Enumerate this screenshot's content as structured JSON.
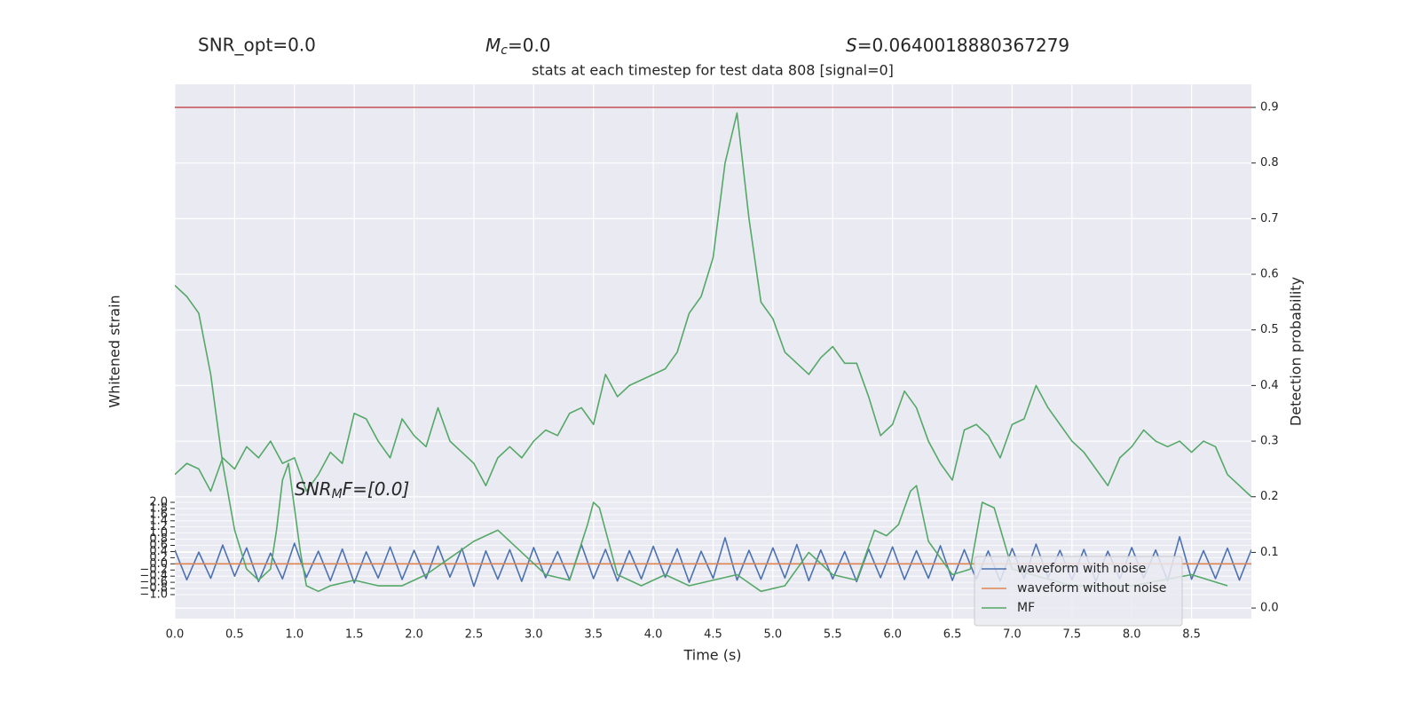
{
  "chart_data": {
    "type": "line",
    "stats": [
      {
        "text": "SNR_opt=0.0"
      },
      {
        "symbol": "M",
        "sub": "c",
        "text": "=0.0"
      },
      {
        "symbol": "S",
        "text": "=0.0640018880367279"
      }
    ],
    "title": "stats at each timestep for test data 808 [signal=0]",
    "annotation": {
      "symbol": "SNR",
      "sub": "M",
      "text": "F=[0.0]"
    },
    "xlabel": "Time (s)",
    "ylabel": "Whitened strain",
    "y2label": "Detection probability",
    "xlim": [
      0,
      9.0
    ],
    "ylim": [
      -1.78,
      15.59
    ],
    "y2lim": [
      -0.019,
      0.9415
    ],
    "xticks": [
      {
        "value": 0,
        "label": "0.0"
      },
      0.5,
      {
        "value": 1,
        "label": "1.0"
      },
      1.5,
      {
        "value": 2,
        "label": "2.0"
      },
      2.5,
      {
        "value": 3,
        "label": "3.0"
      },
      3.5,
      {
        "value": 4,
        "label": "4.0"
      },
      4.5,
      {
        "value": 5,
        "label": "5.0"
      },
      5.5,
      {
        "value": 6,
        "label": "6.0"
      },
      6.5,
      {
        "value": 7,
        "label": "7.0"
      },
      7.5,
      {
        "value": 8,
        "label": "8.0"
      },
      8.5
    ],
    "yticks": [
      {
        "value": -1,
        "label": "−1.0"
      },
      {
        "value": -0.8,
        "label": "−0.8"
      },
      {
        "value": -0.6,
        "label": "−0.6"
      },
      {
        "value": -0.4,
        "label": "−0.4"
      },
      {
        "value": -0.2,
        "label": "−0.2"
      },
      {
        "value": 0,
        "label": "0.0"
      },
      0.2,
      0.4,
      0.6,
      0.8,
      {
        "value": 1,
        "label": "1.0"
      },
      1.2,
      1.4,
      1.6,
      1.8,
      {
        "value": 2,
        "label": "2.0"
      }
    ],
    "y2ticks": [
      {
        "value": 0,
        "label": "0.0"
      },
      0.1,
      0.2,
      0.3,
      0.4,
      0.5,
      0.6,
      0.7,
      0.8,
      0.9
    ],
    "grid": true,
    "legend": "lower right",
    "threshold": 0.9,
    "threshold_color": "#c44e52",
    "x": [
      0,
      0.1,
      0.2,
      0.3,
      0.4,
      0.5,
      0.6,
      0.7,
      0.8,
      0.9,
      1,
      1.1,
      1.2,
      1.3,
      1.4,
      1.5,
      1.6,
      1.7,
      1.8,
      1.9,
      2,
      2.1,
      2.2,
      2.3,
      2.4,
      2.5,
      2.6,
      2.7,
      2.8,
      2.9,
      3,
      3.1,
      3.2,
      3.3,
      3.4,
      3.5,
      3.6,
      3.7,
      3.8,
      3.9,
      4,
      4.1,
      4.2,
      4.3,
      4.4,
      4.5,
      4.6,
      4.7,
      4.8,
      4.9,
      5,
      5.1,
      5.2,
      5.3,
      5.4,
      5.5,
      5.6,
      5.7,
      5.8,
      5.9,
      6,
      6.1,
      6.2,
      6.3,
      6.4,
      6.5,
      6.6,
      6.7,
      6.8,
      6.9,
      7,
      7.1,
      7.2,
      7.3,
      7.4,
      7.5,
      7.6,
      7.7,
      7.8,
      7.9,
      8,
      8.1,
      8.2,
      8.3,
      8.4,
      8.5,
      8.6,
      8.7,
      8.8,
      8.9,
      9
    ],
    "series": [
      {
        "name": "waveform with noise",
        "color": "#4c72b0",
        "axis": "y",
        "values": [
          0.45,
          -0.52,
          0.38,
          -0.47,
          0.61,
          -0.4,
          0.52,
          -0.58,
          0.35,
          -0.49,
          0.67,
          -0.44,
          0.41,
          -0.55,
          0.48,
          -0.62,
          0.39,
          -0.46,
          0.55,
          -0.51,
          0.44,
          -0.48,
          0.58,
          -0.43,
          0.5,
          -0.73,
          0.42,
          -0.5,
          0.46,
          -0.57,
          0.53,
          -0.45,
          0.4,
          -0.52,
          0.62,
          -0.48,
          0.47,
          -0.56,
          0.43,
          -0.49,
          0.57,
          -0.44,
          0.49,
          -0.6,
          0.41,
          -0.47,
          0.85,
          -0.53,
          0.44,
          -0.5,
          0.52,
          -0.46,
          0.63,
          -0.55,
          0.45,
          -0.49,
          0.4,
          -0.58,
          0.48,
          -0.45,
          0.55,
          -0.51,
          0.43,
          -0.47,
          0.59,
          -0.54,
          0.46,
          -0.5,
          0.42,
          -0.56,
          0.5,
          -0.48,
          0.64,
          -0.45,
          0.44,
          -0.52,
          0.47,
          -0.57,
          0.41,
          -0.49,
          0.53,
          -0.46,
          0.45,
          -0.55,
          0.88,
          -0.5,
          0.43,
          -0.48,
          0.51,
          -0.53,
          0.46
        ]
      },
      {
        "name": "waveform without noise",
        "color": "#dd8452",
        "axis": "y",
        "x": [
          0,
          9.0
        ],
        "values": [
          0,
          0
        ]
      },
      {
        "name": "MF",
        "color": "#55a868",
        "axis": "y2",
        "x": [
          0,
          0.1,
          0.2,
          0.3,
          0.4,
          0.5,
          0.6,
          0.7,
          0.8,
          0.85,
          0.9,
          0.95,
          1.05,
          1.1,
          1.2,
          1.3,
          1.5,
          1.7,
          1.9,
          2.1,
          2.3,
          2.5,
          2.7,
          2.9,
          3.1,
          3.3,
          3.45,
          3.5,
          3.55,
          3.7,
          3.9,
          4.1,
          4.3,
          4.5,
          4.7,
          4.9,
          5.1,
          5.3,
          5.5,
          5.7,
          5.85,
          5.95,
          6.05,
          6.15,
          6.2,
          6.3,
          6.5,
          6.65,
          6.75,
          6.85,
          7.0,
          7.5,
          8.0,
          8.5,
          8.8
        ],
        "values": [
          0.58,
          0.56,
          0.53,
          0.42,
          0.26,
          0.14,
          0.07,
          0.05,
          0.07,
          0.14,
          0.23,
          0.26,
          0.1,
          0.04,
          0.03,
          0.04,
          0.05,
          0.04,
          0.04,
          0.06,
          0.09,
          0.12,
          0.14,
          0.1,
          0.06,
          0.05,
          0.15,
          0.19,
          0.18,
          0.06,
          0.04,
          0.06,
          0.04,
          0.05,
          0.06,
          0.03,
          0.04,
          0.1,
          0.06,
          0.05,
          0.14,
          0.13,
          0.15,
          0.21,
          0.22,
          0.12,
          0.06,
          0.07,
          0.19,
          0.18,
          0.07,
          0.04,
          0.04,
          0.06,
          0.04
        ]
      },
      {
        "color": "#55a868",
        "axis": "y2",
        "values": [
          0.24,
          0.26,
          0.25,
          0.21,
          0.27,
          0.25,
          0.29,
          0.27,
          0.3,
          0.26,
          0.27,
          0.21,
          0.24,
          0.28,
          0.26,
          0.35,
          0.34,
          0.3,
          0.27,
          0.34,
          0.31,
          0.29,
          0.36,
          0.3,
          0.28,
          0.26,
          0.22,
          0.27,
          0.29,
          0.27,
          0.3,
          0.32,
          0.31,
          0.35,
          0.36,
          0.33,
          0.42,
          0.38,
          0.4,
          0.41,
          0.42,
          0.43,
          0.46,
          0.53,
          0.56,
          0.63,
          0.8,
          0.89,
          0.7,
          0.55,
          0.52,
          0.46,
          0.44,
          0.42,
          0.45,
          0.47,
          0.44,
          0.44,
          0.38,
          0.31,
          0.33,
          0.39,
          0.36,
          0.3,
          0.26,
          0.23,
          0.32,
          0.33,
          0.31,
          0.27,
          0.33,
          0.34,
          0.4,
          0.36,
          0.33,
          0.3,
          0.28,
          0.25,
          0.22,
          0.27,
          0.29,
          0.32,
          0.3,
          0.29,
          0.3,
          0.28,
          0.3,
          0.29,
          0.24,
          0.22,
          0.2
        ]
      }
    ]
  }
}
